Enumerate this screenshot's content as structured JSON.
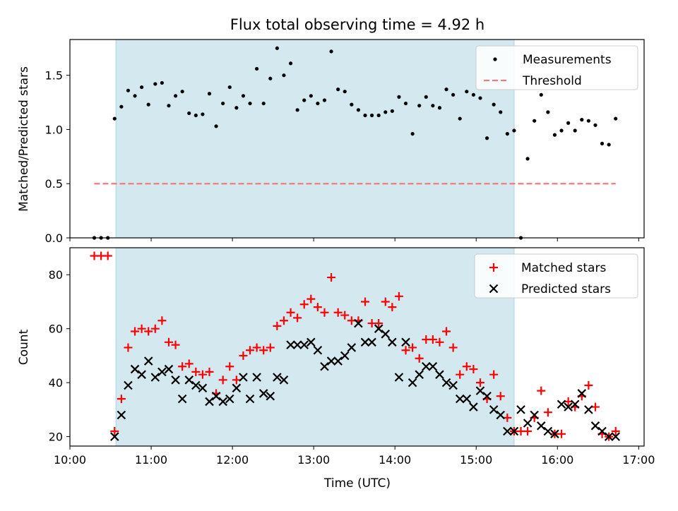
{
  "figure": {
    "title": "Flux total observing time = 4.92 h"
  },
  "chart_data": [
    {
      "type": "scatter",
      "panel": "top",
      "ylabel": "Matched/Predicted stars",
      "ylim": [
        0,
        1.83
      ],
      "yticks": [
        "0.0",
        "0.5",
        "1.0",
        "1.5"
      ],
      "xlim": [
        "10:00",
        "17:04"
      ],
      "shaded_interval": [
        "10:34",
        "15:28"
      ],
      "shade_color": "#d3e9ef",
      "legend": {
        "placement": "top-right"
      },
      "series": [
        {
          "name": "Measurements",
          "marker": "dot",
          "color": "#000000",
          "x": [
            "10:18",
            "10:23",
            "10:28",
            "10:33",
            "10:38",
            "10:43",
            "10:48",
            "10:53",
            "10:58",
            "11:03",
            "11:08",
            "11:13",
            "11:18",
            "11:23",
            "11:28",
            "11:33",
            "11:38",
            "11:43",
            "11:48",
            "11:53",
            "11:58",
            "12:03",
            "12:08",
            "12:13",
            "12:18",
            "12:23",
            "12:28",
            "12:33",
            "12:38",
            "12:43",
            "12:48",
            "12:53",
            "12:58",
            "13:03",
            "13:08",
            "13:13",
            "13:18",
            "13:23",
            "13:28",
            "13:33",
            "13:38",
            "13:43",
            "13:48",
            "13:53",
            "13:58",
            "14:03",
            "14:08",
            "14:13",
            "14:18",
            "14:23",
            "14:28",
            "14:33",
            "14:38",
            "14:43",
            "14:48",
            "14:53",
            "14:58",
            "15:03",
            "15:08",
            "15:13",
            "15:18",
            "15:23",
            "15:28",
            "15:33",
            "15:38",
            "15:43",
            "15:48",
            "15:53",
            "15:58",
            "16:03",
            "16:08",
            "16:13",
            "16:18",
            "16:23",
            "16:28",
            "16:33",
            "16:38",
            "16:43"
          ],
          "y": [
            0,
            0,
            0,
            1.1,
            1.21,
            1.36,
            1.31,
            1.39,
            1.23,
            1.42,
            1.43,
            1.22,
            1.31,
            1.35,
            1.15,
            1.13,
            1.14,
            1.33,
            1.03,
            1.24,
            1.39,
            1.2,
            1.31,
            1.24,
            1.56,
            1.24,
            1.47,
            1.75,
            1.5,
            1.61,
            1.18,
            1.27,
            1.31,
            1.24,
            1.27,
            1.72,
            1.37,
            1.35,
            1.23,
            1.18,
            1.13,
            1.13,
            1.13,
            1.16,
            1.17,
            1.3,
            1.24,
            0.96,
            1.22,
            1.3,
            1.22,
            1.2,
            1.37,
            1.32,
            1.1,
            1.35,
            1.32,
            1.29,
            0.92,
            1.23,
            1.16,
            0.96,
            0.99,
            0,
            0.73,
            1.08,
            1.32,
            1.16,
            0.95,
            0.99,
            1.06,
            0.99,
            1.09,
            1.08,
            1.04,
            0.87,
            0.86,
            1.1
          ]
        },
        {
          "name": "Threshold",
          "style": "dashed",
          "color": "#f07b7b",
          "x": [
            "10:18",
            "16:43"
          ],
          "y": [
            0.5,
            0.5
          ]
        }
      ]
    },
    {
      "type": "scatter",
      "panel": "bottom",
      "xlabel": "Time (UTC)",
      "ylabel": "Count",
      "ylim": [
        16.5,
        90
      ],
      "yticks": [
        "20",
        "40",
        "60",
        "80"
      ],
      "xlim": [
        "10:00",
        "17:04"
      ],
      "xticks": [
        "10:00",
        "11:00",
        "12:00",
        "13:00",
        "14:00",
        "15:00",
        "16:00",
        "17:00"
      ],
      "shaded_interval": [
        "10:34",
        "15:28"
      ],
      "shade_color": "#d3e9ef",
      "legend": {
        "placement": "top-right"
      },
      "series": [
        {
          "name": "Matched stars",
          "marker": "plus",
          "color": "#ff0000",
          "x": [
            "10:18",
            "10:23",
            "10:28",
            "10:33",
            "10:38",
            "10:43",
            "10:48",
            "10:53",
            "10:58",
            "11:03",
            "11:08",
            "11:13",
            "11:18",
            "11:23",
            "11:28",
            "11:33",
            "11:38",
            "11:43",
            "11:48",
            "11:53",
            "11:58",
            "12:03",
            "12:08",
            "12:13",
            "12:18",
            "12:23",
            "12:28",
            "12:33",
            "12:38",
            "12:43",
            "12:48",
            "12:53",
            "12:58",
            "13:03",
            "13:08",
            "13:13",
            "13:18",
            "13:23",
            "13:28",
            "13:33",
            "13:38",
            "13:43",
            "13:48",
            "13:53",
            "13:58",
            "14:03",
            "14:08",
            "14:13",
            "14:18",
            "14:23",
            "14:28",
            "14:33",
            "14:38",
            "14:43",
            "14:48",
            "14:53",
            "14:58",
            "15:03",
            "15:08",
            "15:13",
            "15:18",
            "15:23",
            "15:28",
            "15:33",
            "15:38",
            "15:43",
            "15:48",
            "15:53",
            "15:58",
            "16:03",
            "16:08",
            "16:13",
            "16:18",
            "16:23",
            "16:28",
            "16:33",
            "16:38",
            "16:43"
          ],
          "y": [
            87,
            87,
            87,
            22,
            34,
            53,
            59,
            60,
            59,
            60,
            63,
            55,
            54,
            46,
            47,
            44,
            43,
            44,
            36,
            41,
            46,
            41,
            50,
            52,
            53,
            52,
            53,
            61,
            63,
            66,
            64,
            69,
            71,
            68,
            66,
            79,
            66,
            65,
            63,
            63,
            70,
            62,
            62,
            70,
            68,
            72,
            52,
            53,
            49,
            56,
            56,
            55,
            59,
            53,
            43,
            46,
            45,
            40,
            34,
            43,
            35,
            27,
            22,
            22,
            22,
            27,
            37,
            29,
            21,
            21,
            33,
            31,
            35,
            39,
            31,
            21,
            20,
            22
          ]
        },
        {
          "name": "Predicted stars",
          "marker": "x",
          "color": "#000000",
          "x": [
            "10:33",
            "10:38",
            "10:43",
            "10:48",
            "10:53",
            "10:58",
            "11:03",
            "11:08",
            "11:13",
            "11:18",
            "11:23",
            "11:28",
            "11:33",
            "11:38",
            "11:43",
            "11:48",
            "11:53",
            "11:58",
            "12:03",
            "12:08",
            "12:13",
            "12:18",
            "12:23",
            "12:28",
            "12:33",
            "12:38",
            "12:43",
            "12:48",
            "12:53",
            "12:58",
            "13:03",
            "13:08",
            "13:13",
            "13:18",
            "13:23",
            "13:28",
            "13:33",
            "13:38",
            "13:43",
            "13:48",
            "13:53",
            "13:58",
            "14:03",
            "14:08",
            "14:13",
            "14:18",
            "14:23",
            "14:28",
            "14:33",
            "14:38",
            "14:43",
            "14:48",
            "14:53",
            "14:58",
            "15:03",
            "15:08",
            "15:13",
            "15:18",
            "15:23",
            "15:28",
            "15:33",
            "15:38",
            "15:43",
            "15:48",
            "15:53",
            "15:58",
            "16:03",
            "16:08",
            "16:13",
            "16:18",
            "16:23",
            "16:28",
            "16:33",
            "16:38",
            "16:43"
          ],
          "y": [
            20,
            28,
            39,
            45,
            43,
            48,
            42,
            44,
            45,
            41,
            34,
            41,
            39,
            38,
            33,
            35,
            33,
            34,
            38,
            42,
            34,
            42,
            36,
            35,
            42,
            41,
            54,
            54,
            54,
            55,
            52,
            46,
            48,
            48,
            50,
            53,
            62,
            55,
            55,
            60,
            58,
            55,
            42,
            55,
            40,
            43,
            46,
            46,
            43,
            40,
            39,
            34,
            34,
            31,
            37,
            35,
            30,
            28,
            22,
            22,
            30,
            25,
            28,
            24,
            22,
            21,
            32,
            31,
            32,
            36,
            30,
            24,
            22,
            20,
            20
          ]
        }
      ]
    }
  ]
}
